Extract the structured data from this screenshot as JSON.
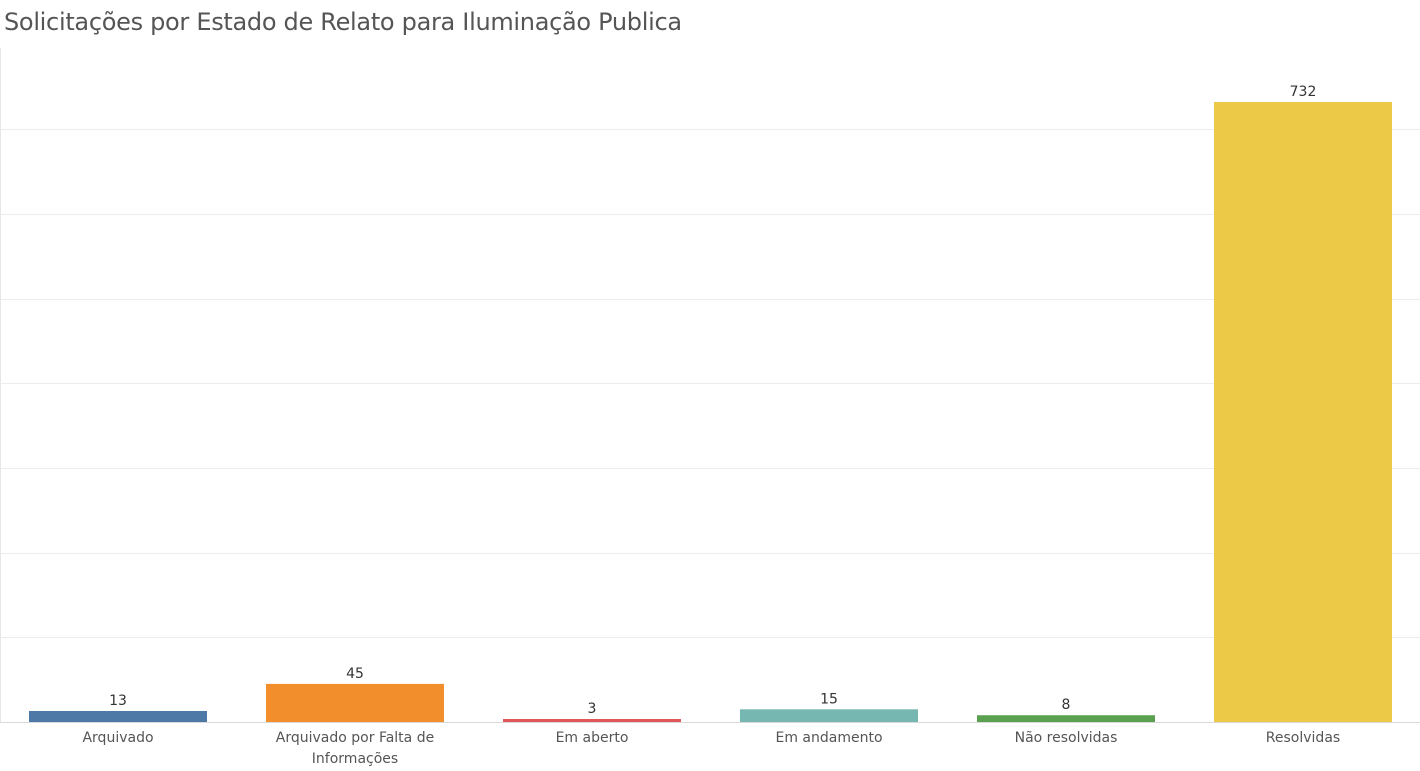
{
  "chart_data": {
    "type": "bar",
    "title": "Solicitações por Estado de Relato para Iluminação Publica",
    "xlabel": "",
    "ylabel": "",
    "categories": [
      "Arquivado",
      "Arquivado por Falta de Informações",
      "Em aberto",
      "Em andamento",
      "Não resolvidas",
      "Resolvidas"
    ],
    "category_lines": [
      [
        "Arquivado"
      ],
      [
        "Arquivado por Falta de",
        "Informações"
      ],
      [
        "Em aberto"
      ],
      [
        "Em andamento"
      ],
      [
        "Não resolvidas"
      ],
      [
        "Resolvidas"
      ]
    ],
    "values": [
      13,
      45,
      3,
      15,
      8,
      732
    ],
    "value_labels": [
      "13",
      "45",
      "3",
      "15",
      "8",
      "732"
    ],
    "colors": [
      "#4e79a7",
      "#f28e2b",
      "#e15759",
      "#76b7b2",
      "#59a14f",
      "#edc948"
    ],
    "ylim": [
      0,
      700
    ],
    "y_gridlines": [
      0,
      100,
      200,
      300,
      400,
      500,
      600,
      700
    ],
    "grid": true,
    "legend": "none"
  }
}
